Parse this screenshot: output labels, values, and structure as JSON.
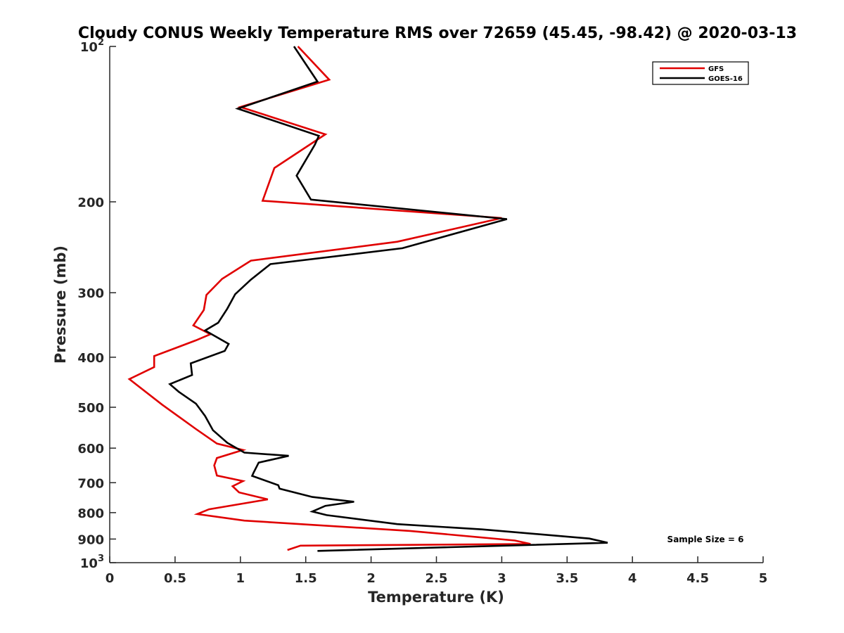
{
  "chart_data": {
    "type": "line",
    "title": "Cloudy CONUS Weekly Temperature RMS over 72659 (45.45, -98.42) @ 2020-03-13",
    "xlabel": "Temperature (K)",
    "ylabel": "Pressure (mb)",
    "xlim": [
      0,
      5
    ],
    "ylim": [
      100,
      1000
    ],
    "yscale": "log",
    "yreversed": true,
    "grid": false,
    "legend_position": "top-right",
    "x_ticks": [
      "0",
      "0.5",
      "1",
      "1.5",
      "2",
      "2.5",
      "3",
      "3.5",
      "4",
      "4.5",
      "5"
    ],
    "y_ticks": [
      {
        "value": 100,
        "base": "10",
        "exp": "2"
      },
      {
        "value": 200,
        "label": "200"
      },
      {
        "value": 300,
        "label": "300"
      },
      {
        "value": 400,
        "label": "400"
      },
      {
        "value": 500,
        "label": "500"
      },
      {
        "value": 600,
        "label": "600"
      },
      {
        "value": 700,
        "label": "700"
      },
      {
        "value": 800,
        "label": "800"
      },
      {
        "value": 900,
        "label": "900"
      },
      {
        "value": 1000,
        "base": "10",
        "exp": "3"
      }
    ],
    "annotation": "Sample Size = 6",
    "series": [
      {
        "name": "GFS",
        "color": "#e00000",
        "points": [
          [
            1.44,
            100
          ],
          [
            1.68,
            116
          ],
          [
            1.0,
            131
          ],
          [
            1.65,
            148
          ],
          [
            1.26,
            172
          ],
          [
            1.17,
            199
          ],
          [
            3.0,
            215
          ],
          [
            2.2,
            239
          ],
          [
            1.08,
            260
          ],
          [
            0.86,
            282
          ],
          [
            0.74,
            303
          ],
          [
            0.72,
            324
          ],
          [
            0.64,
            347
          ],
          [
            0.77,
            361
          ],
          [
            0.66,
            371
          ],
          [
            0.34,
            398
          ],
          [
            0.34,
            418
          ],
          [
            0.15,
            441
          ],
          [
            0.4,
            494
          ],
          [
            0.66,
            551
          ],
          [
            0.82,
            588
          ],
          [
            1.02,
            605
          ],
          [
            0.82,
            627
          ],
          [
            0.8,
            648
          ],
          [
            0.82,
            678
          ],
          [
            1.02,
            695
          ],
          [
            0.94,
            711
          ],
          [
            0.99,
            731
          ],
          [
            1.21,
            754
          ],
          [
            0.76,
            788
          ],
          [
            0.67,
            805
          ],
          [
            1.03,
            829
          ],
          [
            2.3,
            868
          ],
          [
            3.1,
            906
          ],
          [
            3.22,
            920
          ],
          [
            1.46,
            927
          ],
          [
            1.36,
            945
          ]
        ]
      },
      {
        "name": "GOES-16",
        "color": "#000000",
        "points": [
          [
            1.41,
            100
          ],
          [
            1.59,
            117
          ],
          [
            0.98,
            132
          ],
          [
            1.6,
            149
          ],
          [
            1.57,
            155
          ],
          [
            1.43,
            178
          ],
          [
            1.54,
            198
          ],
          [
            3.04,
            216
          ],
          [
            2.24,
            246
          ],
          [
            1.23,
            264
          ],
          [
            1.08,
            283
          ],
          [
            0.96,
            302
          ],
          [
            0.9,
            322
          ],
          [
            0.83,
            343
          ],
          [
            0.73,
            355
          ],
          [
            0.91,
            377
          ],
          [
            0.88,
            389
          ],
          [
            0.62,
            411
          ],
          [
            0.63,
            433
          ],
          [
            0.46,
            451
          ],
          [
            0.53,
            467
          ],
          [
            0.66,
            492
          ],
          [
            0.73,
            520
          ],
          [
            0.79,
            554
          ],
          [
            0.9,
            586
          ],
          [
            1.03,
            612
          ],
          [
            1.37,
            621
          ],
          [
            1.14,
            640
          ],
          [
            1.1,
            670
          ],
          [
            1.09,
            679
          ],
          [
            1.29,
            708
          ],
          [
            1.3,
            719
          ],
          [
            1.55,
            746
          ],
          [
            1.87,
            762
          ],
          [
            1.65,
            776
          ],
          [
            1.55,
            796
          ],
          [
            1.66,
            809
          ],
          [
            2.2,
            842
          ],
          [
            2.85,
            862
          ],
          [
            3.67,
            898
          ],
          [
            3.81,
            915
          ],
          [
            1.59,
            949
          ]
        ]
      }
    ]
  }
}
